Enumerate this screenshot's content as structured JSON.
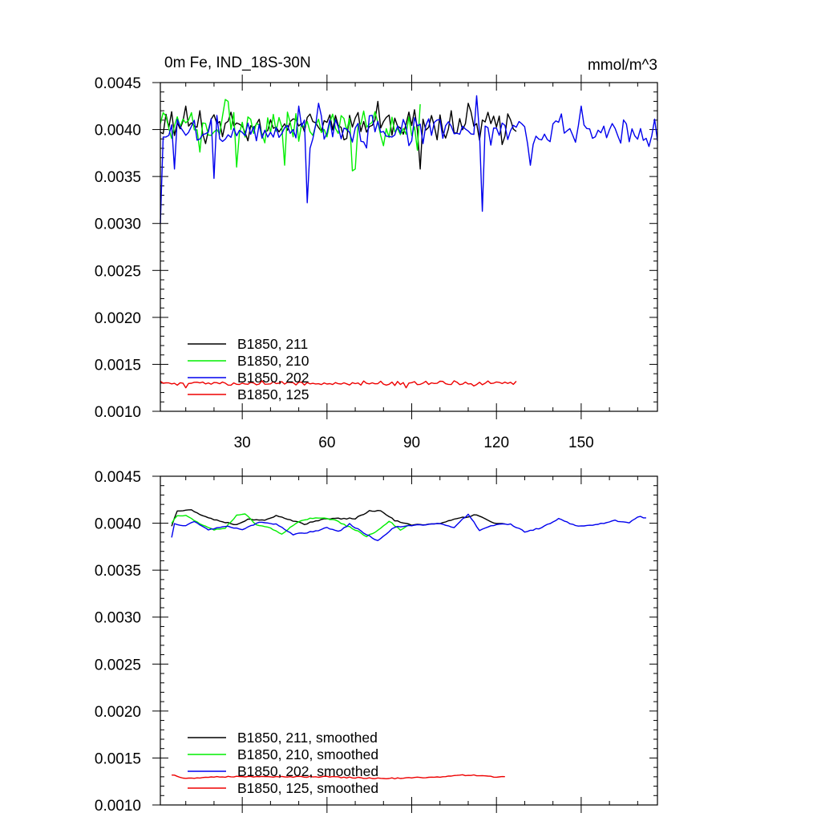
{
  "figure": {
    "title_left": "0m Fe, IND_18S-30N",
    "title_right": "mmol/m^3"
  },
  "chart_data": [
    {
      "type": "line",
      "panel": "top",
      "title": "0m Fe, IND_18S-30N",
      "units": "mmol/m^3",
      "xlim": [
        1,
        177
      ],
      "ylim": [
        0.001,
        0.0045
      ],
      "x_ticks": [
        30,
        60,
        90,
        120,
        150
      ],
      "x_tick_labels": [
        "30",
        "60",
        "90",
        "120",
        "150"
      ],
      "y_ticks": [
        0.001,
        0.0015,
        0.002,
        0.0025,
        0.003,
        0.0035,
        0.004,
        0.0045
      ],
      "y_tick_labels": [
        "0.0010",
        "0.0015",
        "0.0020",
        "0.0025",
        "0.0030",
        "0.0035",
        "0.0040",
        "0.0045"
      ],
      "legend": "bottom-left",
      "series": [
        {
          "name": "B1850, 211",
          "color": "#000000",
          "length": 127,
          "base": 0.00406,
          "noise": 0.00013,
          "seed": 11,
          "extremes": [
            [
              5,
              0.00419
            ],
            [
              10,
              0.00425
            ],
            [
              15,
              0.0042
            ],
            [
              17,
              0.00385
            ],
            [
              32,
              0.00388
            ],
            [
              78,
              0.0043
            ],
            [
              87,
              0.00395
            ],
            [
              93,
              0.00358
            ],
            [
              104,
              0.0042
            ],
            [
              110,
              0.00428
            ],
            [
              122,
              0.00384
            ],
            [
              127,
              0.00398
            ]
          ]
        },
        {
          "name": "B1850, 210",
          "color": "#00ee00",
          "length": 93,
          "base": 0.00403,
          "noise": 0.00015,
          "seed": 7,
          "extremes": [
            [
              2,
              0.00418
            ],
            [
              12,
              0.00418
            ],
            [
              15,
              0.00376
            ],
            [
              22,
              0.00395
            ],
            [
              24,
              0.00432
            ],
            [
              25,
              0.0043
            ],
            [
              27,
              0.00418
            ],
            [
              28,
              0.0036
            ],
            [
              45,
              0.00362
            ],
            [
              69,
              0.00356
            ],
            [
              70,
              0.00358
            ],
            [
              92,
              0.00378
            ],
            [
              93,
              0.00427
            ]
          ]
        },
        {
          "name": "B1850, 202",
          "color": "#0000ee",
          "length": 177,
          "base": 0.00398,
          "noise": 0.00014,
          "seed": 3,
          "extremes": [
            [
              1,
              0.003
            ],
            [
              2,
              0.00392
            ],
            [
              3,
              0.00392
            ],
            [
              5,
              0.00405
            ],
            [
              6,
              0.00358
            ],
            [
              20,
              0.00348
            ],
            [
              50,
              0.00425
            ],
            [
              53,
              0.00322
            ],
            [
              57,
              0.00428
            ],
            [
              113,
              0.00436
            ],
            [
              115,
              0.00313
            ],
            [
              117,
              0.00402
            ],
            [
              132,
              0.00362
            ],
            [
              150,
              0.00425
            ],
            [
              177,
              0.00388
            ]
          ]
        },
        {
          "name": "B1850, 125",
          "color": "#ee0000",
          "length": 127,
          "base": 0.0013,
          "noise": 2e-05,
          "seed": 5,
          "extremes": [
            [
              1,
              0.00132
            ],
            [
              10,
              0.00125
            ],
            [
              30,
              0.0013
            ],
            [
              60,
              0.00129
            ],
            [
              88,
              0.00125
            ],
            [
              100,
              0.00132
            ],
            [
              112,
              0.00127
            ],
            [
              127,
              0.00132
            ]
          ]
        }
      ]
    },
    {
      "type": "line",
      "panel": "bottom",
      "xlim": [
        1,
        177
      ],
      "ylim": [
        0.001,
        0.0045
      ],
      "x_ticks": [
        30,
        60,
        90,
        120,
        150
      ],
      "y_ticks": [
        0.001,
        0.0015,
        0.002,
        0.0025,
        0.003,
        0.0035,
        0.004,
        0.0045
      ],
      "y_tick_labels": [
        "0.0010",
        "0.0015",
        "0.0020",
        "0.0025",
        "0.0030",
        "0.0035",
        "0.0040",
        "0.0045"
      ],
      "legend": "bottom-left",
      "series": [
        {
          "name": "B1850, 211, smoothed",
          "color": "#000000",
          "start": 5,
          "end": 123,
          "ctrl": [
            [
              5,
              0.00397
            ],
            [
              7,
              0.00413
            ],
            [
              12,
              0.00414
            ],
            [
              16,
              0.00408
            ],
            [
              20,
              0.00404
            ],
            [
              28,
              0.00398
            ],
            [
              32,
              0.00404
            ],
            [
              38,
              0.00403
            ],
            [
              42,
              0.00408
            ],
            [
              52,
              0.00399
            ],
            [
              58,
              0.00404
            ],
            [
              64,
              0.00405
            ],
            [
              70,
              0.00405
            ],
            [
              75,
              0.00413
            ],
            [
              79,
              0.00413
            ],
            [
              84,
              0.00403
            ],
            [
              90,
              0.00398
            ],
            [
              95,
              0.00399
            ],
            [
              100,
              0.004
            ],
            [
              105,
              0.00404
            ],
            [
              113,
              0.00409
            ],
            [
              118,
              0.00401
            ],
            [
              123,
              0.00399
            ]
          ]
        },
        {
          "name": "B1850, 210, smoothed",
          "color": "#00ee00",
          "start": 5,
          "end": 89,
          "ctrl": [
            [
              5,
              0.004
            ],
            [
              7,
              0.00408
            ],
            [
              10,
              0.00408
            ],
            [
              16,
              0.00398
            ],
            [
              20,
              0.00393
            ],
            [
              24,
              0.00395
            ],
            [
              28,
              0.00408
            ],
            [
              31,
              0.0041
            ],
            [
              35,
              0.00398
            ],
            [
              40,
              0.00395
            ],
            [
              44,
              0.00388
            ],
            [
              48,
              0.00398
            ],
            [
              52,
              0.00404
            ],
            [
              57,
              0.00406
            ],
            [
              63,
              0.00403
            ],
            [
              70,
              0.00393
            ],
            [
              74,
              0.00386
            ],
            [
              78,
              0.00392
            ],
            [
              82,
              0.00402
            ],
            [
              86,
              0.00393
            ],
            [
              89,
              0.00398
            ]
          ]
        },
        {
          "name": "B1850, 202, smoothed",
          "color": "#0000ee",
          "start": 5,
          "end": 173,
          "ctrl": [
            [
              5,
              0.00385
            ],
            [
              6,
              0.00399
            ],
            [
              10,
              0.00397
            ],
            [
              13,
              0.00402
            ],
            [
              18,
              0.00393
            ],
            [
              24,
              0.00397
            ],
            [
              30,
              0.00393
            ],
            [
              36,
              0.00401
            ],
            [
              42,
              0.00399
            ],
            [
              48,
              0.00388
            ],
            [
              55,
              0.00391
            ],
            [
              60,
              0.00395
            ],
            [
              64,
              0.00391
            ],
            [
              68,
              0.00399
            ],
            [
              74,
              0.00388
            ],
            [
              78,
              0.00381
            ],
            [
              84,
              0.00396
            ],
            [
              92,
              0.00398
            ],
            [
              100,
              0.004
            ],
            [
              105,
              0.00395
            ],
            [
              110,
              0.0041
            ],
            [
              114,
              0.00392
            ],
            [
              120,
              0.00399
            ],
            [
              125,
              0.00399
            ],
            [
              130,
              0.00391
            ],
            [
              136,
              0.00395
            ],
            [
              142,
              0.00405
            ],
            [
              148,
              0.00397
            ],
            [
              155,
              0.00398
            ],
            [
              162,
              0.00403
            ],
            [
              167,
              0.004
            ],
            [
              170,
              0.00407
            ],
            [
              173,
              0.00406
            ]
          ]
        },
        {
          "name": "B1850, 125, smoothed",
          "color": "#ee0000",
          "start": 5,
          "end": 123,
          "ctrl": [
            [
              5,
              0.00132
            ],
            [
              10,
              0.00128
            ],
            [
              20,
              0.0013
            ],
            [
              40,
              0.0013
            ],
            [
              60,
              0.0013
            ],
            [
              80,
              0.00128
            ],
            [
              90,
              0.00129
            ],
            [
              100,
              0.0013
            ],
            [
              110,
              0.00132
            ],
            [
              118,
              0.0013
            ],
            [
              123,
              0.0013
            ]
          ]
        }
      ]
    }
  ]
}
